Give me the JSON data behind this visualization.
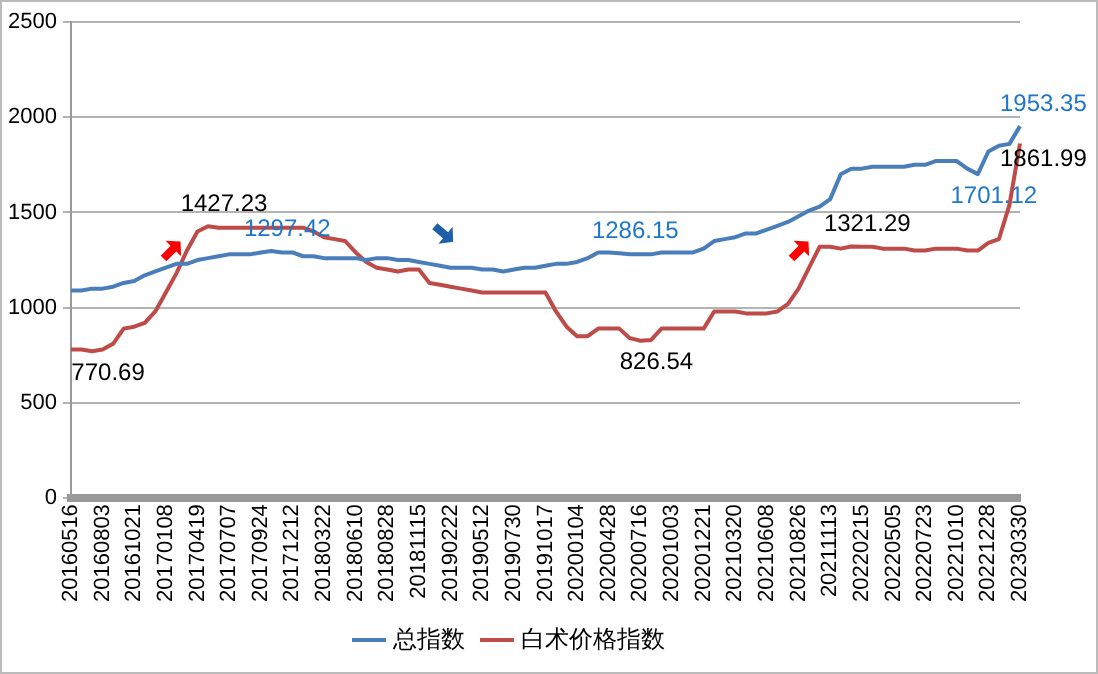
{
  "chart_data": {
    "type": "line",
    "categories": [
      "20160516",
      null,
      null,
      "20160803",
      null,
      null,
      "20161021",
      null,
      null,
      "20170108",
      null,
      null,
      "20170419",
      null,
      null,
      "20170707",
      null,
      null,
      "20170924",
      null,
      null,
      "20171212",
      null,
      null,
      "20180322",
      null,
      null,
      "20180610",
      null,
      null,
      "20180828",
      null,
      null,
      "20181115",
      null,
      null,
      "20190222",
      null,
      null,
      "20190512",
      null,
      null,
      "20190730",
      null,
      null,
      "20191017",
      null,
      null,
      "20200104",
      null,
      null,
      "20200428",
      null,
      null,
      "20200716",
      null,
      null,
      "20201003",
      null,
      null,
      "20201221",
      null,
      null,
      "20210320",
      null,
      null,
      "20210608",
      null,
      null,
      "20210826",
      null,
      null,
      "20211113",
      null,
      null,
      "20220215",
      null,
      null,
      "20220505",
      null,
      null,
      "20220723",
      null,
      null,
      "20221010",
      null,
      null,
      "20221228",
      null,
      null,
      "20230330"
    ],
    "series": [
      {
        "name": "总指数",
        "color": "#4a7ebb",
        "values": [
          1090,
          1090,
          1100,
          1100,
          1110,
          1130,
          1140,
          1170,
          1190,
          1210,
          1230,
          1230,
          1250,
          1260,
          1270,
          1280,
          1280,
          1280,
          1290,
          1297.42,
          1290,
          1290,
          1270,
          1270,
          1260,
          1260,
          1260,
          1260,
          1250,
          1260,
          1260,
          1250,
          1250,
          1240,
          1230,
          1220,
          1210,
          1210,
          1210,
          1200,
          1200,
          1190,
          1200,
          1210,
          1210,
          1220,
          1230,
          1230,
          1240,
          1260,
          1290,
          1290,
          1286.15,
          1280,
          1280,
          1280,
          1290,
          1290,
          1290,
          1290,
          1310,
          1350,
          1360,
          1370,
          1390,
          1390,
          1410,
          1430,
          1450,
          1480,
          1510,
          1530,
          1570,
          1700,
          1730,
          1730,
          1740,
          1740,
          1740,
          1740,
          1750,
          1750,
          1770,
          1770,
          1770,
          1730,
          1701.12,
          1820,
          1850,
          1860,
          1953.35
        ],
        "value_labels": [
          null,
          null,
          null,
          null,
          null,
          null,
          null,
          null,
          null,
          null,
          null,
          null,
          null,
          null,
          null,
          null,
          null,
          null,
          null,
          "1297.42",
          null,
          null,
          null,
          null,
          null,
          null,
          null,
          null,
          null,
          null,
          null,
          null,
          null,
          null,
          null,
          null,
          null,
          null,
          null,
          null,
          null,
          null,
          null,
          null,
          null,
          null,
          null,
          null,
          null,
          null,
          null,
          null,
          "1286.15",
          null,
          null,
          null,
          null,
          null,
          null,
          null,
          null,
          null,
          null,
          null,
          null,
          null,
          null,
          null,
          null,
          null,
          null,
          null,
          null,
          null,
          null,
          null,
          null,
          null,
          null,
          null,
          null,
          null,
          null,
          null,
          null,
          null,
          "1701.12",
          null,
          null,
          null,
          "1953.35"
        ]
      },
      {
        "name": "白术价格指数",
        "color": "#be4b48",
        "values": [
          780,
          780,
          770.69,
          780,
          810,
          890,
          900,
          920,
          980,
          1080,
          1180,
          1300,
          1400,
          1427.23,
          1420,
          1420,
          1420,
          1420,
          1420,
          1420,
          1420,
          1420,
          1420,
          1400,
          1370,
          1360,
          1350,
          1290,
          1240,
          1210,
          1200,
          1190,
          1200,
          1200,
          1130,
          1120,
          1110,
          1100,
          1090,
          1080,
          1080,
          1080,
          1080,
          1080,
          1080,
          1080,
          980,
          900,
          850,
          850,
          890,
          890,
          890,
          840,
          826.54,
          830,
          890,
          890,
          890,
          890,
          890,
          980,
          980,
          980,
          970,
          970,
          970,
          980,
          1020,
          1100,
          1210,
          1320,
          1320,
          1310,
          1321.29,
          1320,
          1320,
          1310,
          1310,
          1310,
          1300,
          1300,
          1310,
          1310,
          1310,
          1300,
          1300,
          1340,
          1360,
          1540,
          1861.99
        ],
        "value_labels": [
          null,
          null,
          "770.69",
          null,
          null,
          null,
          null,
          null,
          null,
          null,
          null,
          null,
          null,
          "1427.23",
          null,
          null,
          null,
          null,
          null,
          null,
          null,
          null,
          null,
          null,
          null,
          null,
          null,
          null,
          null,
          null,
          null,
          null,
          null,
          null,
          null,
          null,
          null,
          null,
          null,
          null,
          null,
          null,
          null,
          null,
          null,
          null,
          null,
          null,
          null,
          null,
          null,
          null,
          null,
          null,
          "826.54",
          null,
          null,
          null,
          null,
          null,
          null,
          null,
          null,
          null,
          null,
          null,
          null,
          null,
          null,
          null,
          null,
          null,
          null,
          null,
          "1321.29",
          null,
          null,
          null,
          null,
          null,
          null,
          null,
          null,
          null,
          null,
          null,
          null,
          null,
          null,
          null,
          "1861.99"
        ]
      }
    ],
    "ylim": [
      0,
      2500
    ],
    "yticks": [
      0,
      500,
      1000,
      1500,
      2000,
      2500
    ],
    "grid": "y",
    "legend": "bottom",
    "marker": "none",
    "line_style": "solid"
  }
}
